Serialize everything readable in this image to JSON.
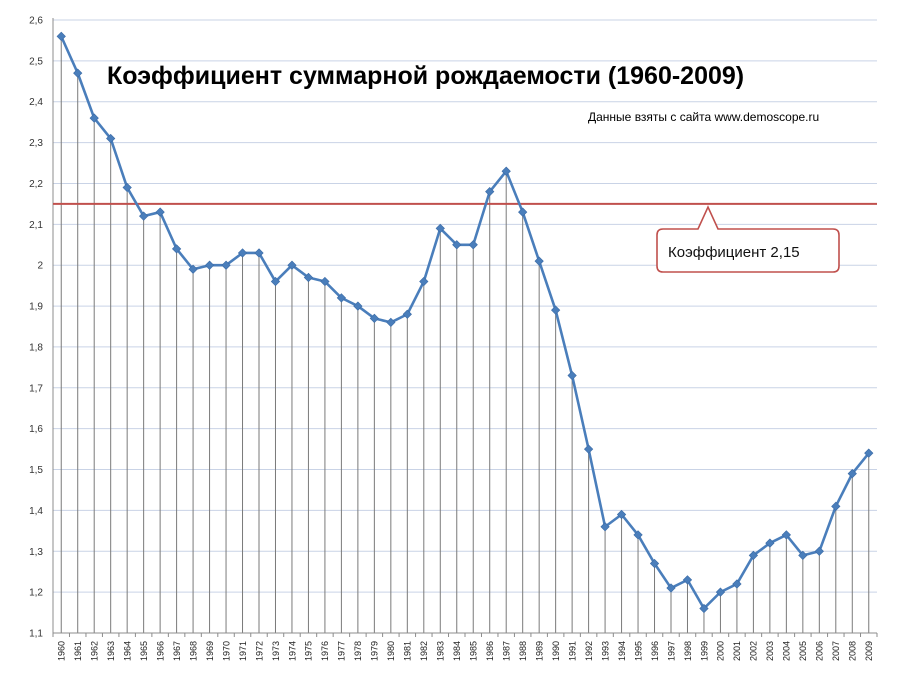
{
  "chart_data": {
    "type": "line",
    "title": "Коэффициент суммарной рождаемости (1960-2009)",
    "subtitle": "Данные взяты с сайта www.demoscope.ru",
    "xlabel": "",
    "ylabel": "",
    "ylim": [
      1.1,
      2.6
    ],
    "yticks": [
      "1,1",
      "1,2",
      "1,3",
      "1,4",
      "1,5",
      "1,6",
      "1,7",
      "1,8",
      "1,9",
      "2",
      "2,1",
      "2,2",
      "2,3",
      "2,4",
      "2,5",
      "2,6"
    ],
    "grid": true,
    "categories": [
      "1960",
      "1961",
      "1962",
      "1963",
      "1964",
      "1965",
      "1966",
      "1967",
      "1968",
      "1969",
      "1970",
      "1971",
      "1972",
      "1973",
      "1974",
      "1975",
      "1976",
      "1977",
      "1978",
      "1979",
      "1980",
      "1981",
      "1982",
      "1983",
      "1984",
      "1985",
      "1986",
      "1987",
      "1988",
      "1989",
      "1990",
      "1991",
      "1992",
      "1993",
      "1994",
      "1995",
      "1996",
      "1997",
      "1998",
      "1999",
      "2000",
      "2001",
      "2002",
      "2003",
      "2004",
      "2005",
      "2006",
      "2007",
      "2008",
      "2009"
    ],
    "series": [
      {
        "values": [
          2.56,
          2.47,
          2.36,
          2.31,
          2.19,
          2.12,
          2.13,
          2.04,
          1.99,
          2.0,
          2.0,
          2.03,
          2.03,
          1.96,
          2.0,
          1.97,
          1.96,
          1.92,
          1.9,
          1.87,
          1.86,
          1.88,
          1.96,
          2.09,
          2.05,
          2.05,
          2.18,
          2.23,
          2.13,
          2.01,
          1.89,
          1.73,
          1.55,
          1.36,
          1.39,
          1.34,
          1.27,
          1.21,
          1.23,
          1.16,
          1.2,
          1.22,
          1.29,
          1.32,
          1.34,
          1.29,
          1.3,
          1.41,
          1.49,
          1.54
        ],
        "color": "#4A7EBB"
      }
    ],
    "reference_line": {
      "value": 2.15,
      "color": "#C0504D"
    },
    "annotation": {
      "text": "Коэффициент  2,15",
      "color": "#C0504D"
    }
  }
}
